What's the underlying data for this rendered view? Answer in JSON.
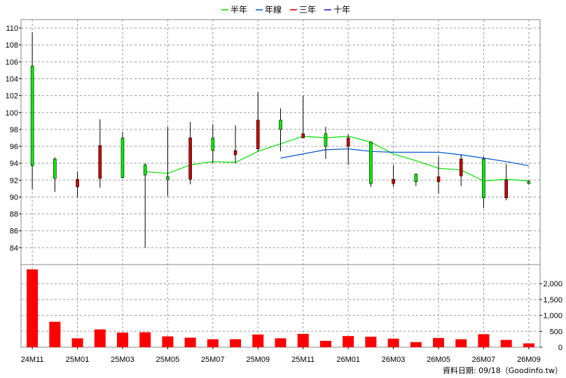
{
  "chart_data": {
    "type": "candlestick",
    "legend": [
      {
        "name": "半年",
        "color": "#00dd00"
      },
      {
        "name": "年線",
        "color": "#0055cc"
      },
      {
        "name": "三年",
        "color": "#cc0000"
      },
      {
        "name": "十年",
        "color": "#3300cc"
      }
    ],
    "price_axis": {
      "min": 82,
      "max": 111,
      "ticks": [
        84,
        86,
        88,
        90,
        92,
        94,
        96,
        98,
        100,
        102,
        104,
        106,
        108,
        110
      ]
    },
    "volume_axis": {
      "min": 0,
      "max": 2600,
      "ticks": [
        0,
        500,
        1000,
        1500,
        2000
      ],
      "tick_labels": [
        "0",
        "500",
        "1,000",
        "1,500",
        "2,000"
      ]
    },
    "x_tick_labels": [
      "24M11",
      "25M01",
      "25M03",
      "25M05",
      "25M07",
      "25M09",
      "25M11",
      "26M01",
      "26M03",
      "26M05",
      "26M07",
      "26M09"
    ],
    "candles": [
      {
        "open": 93.7,
        "high": 109.5,
        "low": 90.9,
        "close": 105.5,
        "volume": 2450
      },
      {
        "open": 92.2,
        "high": 94.7,
        "low": 90.6,
        "close": 94.5,
        "volume": 800
      },
      {
        "open": 92.1,
        "high": 93.0,
        "low": 89.9,
        "close": 91.2,
        "volume": 280
      },
      {
        "open": 96.1,
        "high": 99.2,
        "low": 91.1,
        "close": 92.2,
        "volume": 560
      },
      {
        "open": 92.3,
        "high": 97.7,
        "low": 92.2,
        "close": 97.0,
        "volume": 460
      },
      {
        "open": 92.6,
        "high": 94.0,
        "low": 84.0,
        "close": 93.8,
        "volume": 470
      },
      {
        "open": 92.1,
        "high": 98.3,
        "low": 90.1,
        "close": 92.4,
        "volume": 340
      },
      {
        "open": 97.0,
        "high": 98.9,
        "low": 91.5,
        "close": 92.1,
        "volume": 300
      },
      {
        "open": 95.5,
        "high": 98.6,
        "low": 94.0,
        "close": 97.0,
        "volume": 250
      },
      {
        "open": 95.5,
        "high": 98.5,
        "low": 94.0,
        "close": 95.0,
        "volume": 250
      },
      {
        "open": 99.1,
        "high": 102.4,
        "low": 95.4,
        "close": 95.7,
        "volume": 400
      },
      {
        "open": 98.0,
        "high": 100.5,
        "low": 95.4,
        "close": 99.1,
        "volume": 280
      },
      {
        "open": 97.5,
        "high": 102.0,
        "low": 97.0,
        "close": 97.0,
        "volume": 420
      },
      {
        "open": 96.0,
        "high": 98.3,
        "low": 94.5,
        "close": 97.5,
        "volume": 200
      },
      {
        "open": 97.0,
        "high": 97.4,
        "low": 93.8,
        "close": 96.0,
        "volume": 350
      },
      {
        "open": 91.6,
        "high": 96.6,
        "low": 91.2,
        "close": 96.5,
        "volume": 330
      },
      {
        "open": 92.1,
        "high": 93.8,
        "low": 91.2,
        "close": 91.6,
        "volume": 270
      },
      {
        "open": 91.8,
        "high": 92.8,
        "low": 91.3,
        "close": 92.7,
        "volume": 160
      },
      {
        "open": 92.4,
        "high": 94.8,
        "low": 90.4,
        "close": 91.8,
        "volume": 290
      },
      {
        "open": 94.5,
        "high": 95.0,
        "low": 91.3,
        "close": 92.5,
        "volume": 250
      },
      {
        "open": 89.9,
        "high": 94.8,
        "low": 88.7,
        "close": 94.5,
        "volume": 410
      },
      {
        "open": 92.0,
        "high": 93.9,
        "low": 89.6,
        "close": 89.9,
        "volume": 230
      },
      {
        "open": 91.6,
        "high": 92.0,
        "low": 91.5,
        "close": 91.8,
        "volume": 120
      }
    ],
    "half_year_ma": [
      null,
      null,
      null,
      null,
      null,
      93.0,
      92.8,
      93.8,
      94.2,
      94.1,
      95.4,
      96.3,
      97.2,
      97.0,
      97.2,
      96.5,
      95.1,
      94.3,
      93.4,
      93.2,
      91.9,
      92.1,
      91.9
    ],
    "year_ma": [
      null,
      null,
      null,
      null,
      null,
      null,
      null,
      null,
      null,
      null,
      null,
      94.6,
      95.1,
      95.6,
      95.7,
      95.4,
      95.3,
      95.3,
      95.3,
      95.0,
      94.6,
      94.2,
      93.7
    ]
  },
  "footnote": "資料日期: 09/18（Goodinfo.tw）"
}
